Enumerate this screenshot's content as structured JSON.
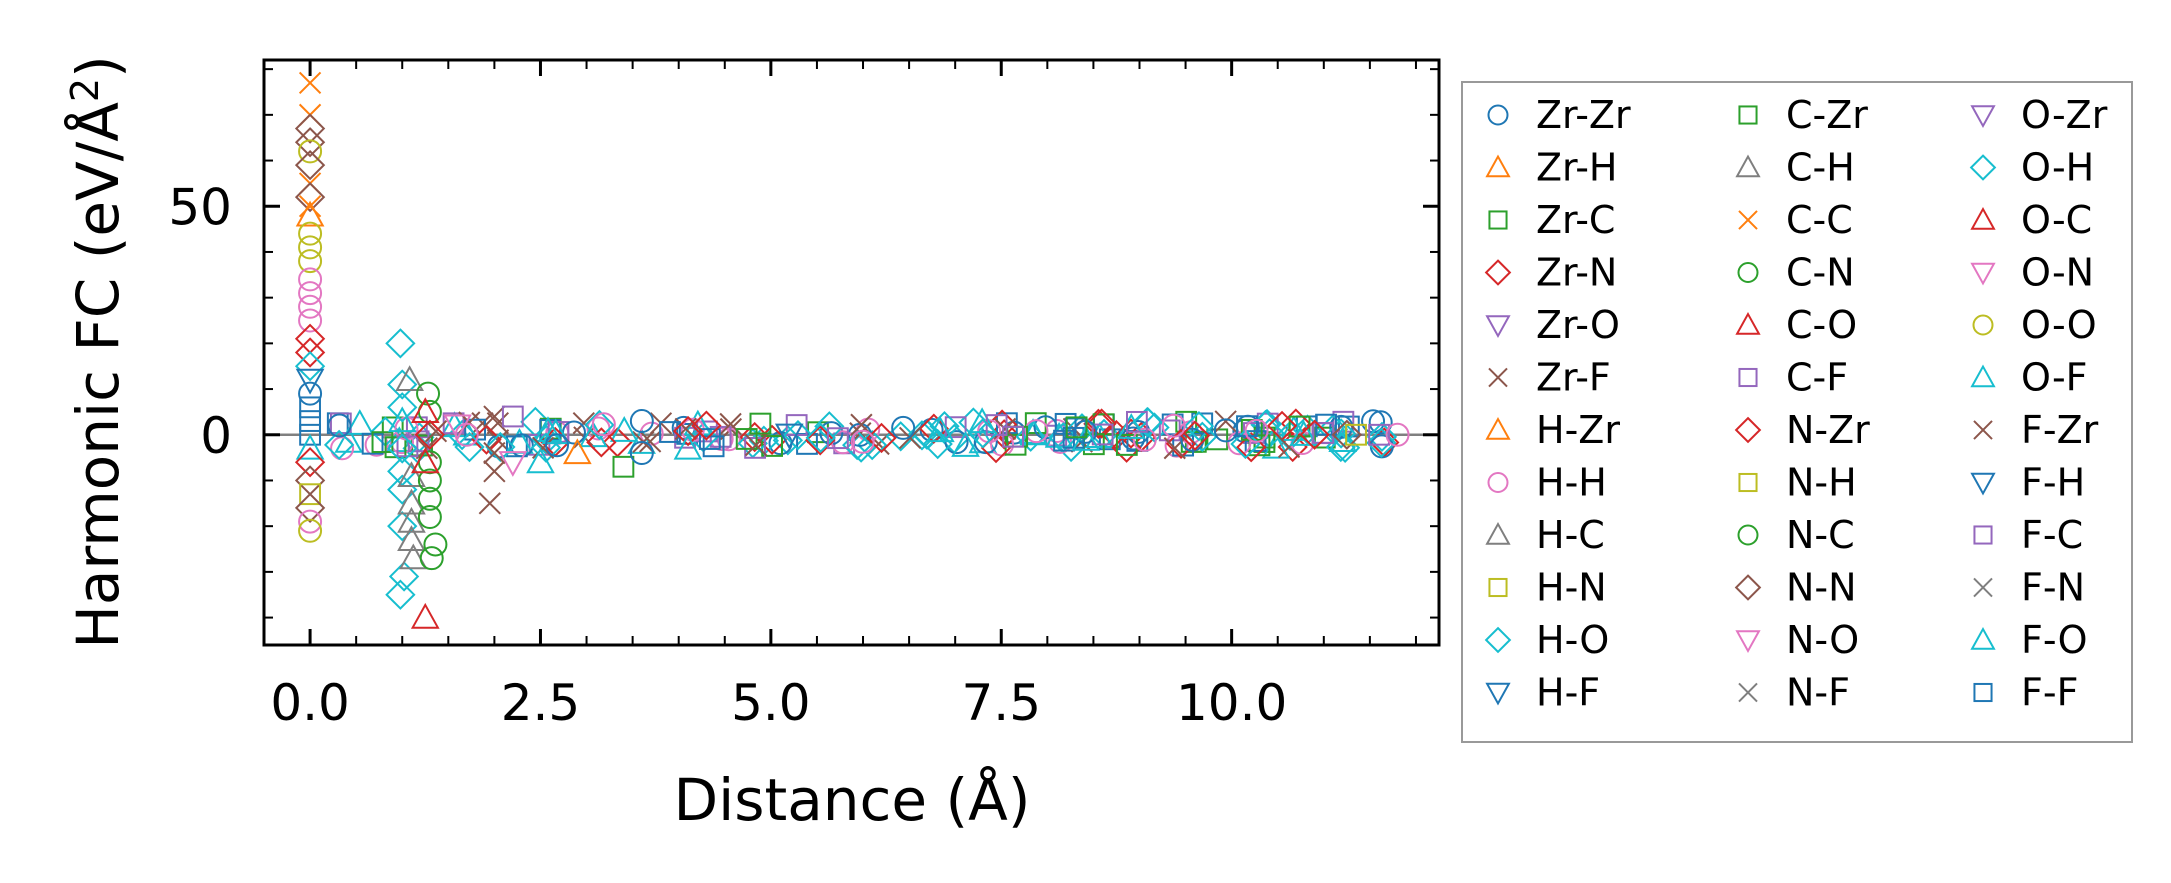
{
  "chart_data": {
    "type": "scatter",
    "title": "",
    "xlabel": "Distance (Å)",
    "ylabel": "Harmonic FC (eV/Å²)",
    "ylabel_parts": {
      "prefix": "Harmonic FC (eV/Å",
      "superscript": "2",
      "suffix": ")"
    },
    "xlim": [
      -0.5,
      12.25
    ],
    "ylim": [
      -46,
      82
    ],
    "xticks": [
      0.0,
      2.5,
      5.0,
      7.5,
      10.0
    ],
    "xtick_labels": [
      "0.0",
      "2.5",
      "5.0",
      "7.5",
      "10.0"
    ],
    "yticks": [
      0,
      50
    ],
    "ytick_labels": [
      "0",
      "50"
    ],
    "reference_line_y": 0,
    "legend_position": "right-outside",
    "legend": [
      {
        "label": "Zr-Zr",
        "marker": "circle",
        "color": "#1f77b4"
      },
      {
        "label": "Zr-H",
        "marker": "triangle-up",
        "color": "#ff7f0e"
      },
      {
        "label": "Zr-C",
        "marker": "square",
        "color": "#2ca02c"
      },
      {
        "label": "Zr-N",
        "marker": "diamond",
        "color": "#d62728"
      },
      {
        "label": "Zr-O",
        "marker": "triangle-down",
        "color": "#9467bd"
      },
      {
        "label": "Zr-F",
        "marker": "x",
        "color": "#8c564b"
      },
      {
        "label": "H-Zr",
        "marker": "triangle-up",
        "color": "#ff7f0e"
      },
      {
        "label": "H-H",
        "marker": "circle",
        "color": "#e377c2"
      },
      {
        "label": "H-C",
        "marker": "triangle-up",
        "color": "#7f7f7f"
      },
      {
        "label": "H-N",
        "marker": "square",
        "color": "#bcbd22"
      },
      {
        "label": "H-O",
        "marker": "diamond",
        "color": "#17becf"
      },
      {
        "label": "H-F",
        "marker": "triangle-down",
        "color": "#1f77b4"
      },
      {
        "label": "C-Zr",
        "marker": "square",
        "color": "#2ca02c"
      },
      {
        "label": "C-H",
        "marker": "triangle-up",
        "color": "#7f7f7f"
      },
      {
        "label": "C-C",
        "marker": "x",
        "color": "#ff7f0e"
      },
      {
        "label": "C-N",
        "marker": "circle",
        "color": "#2ca02c"
      },
      {
        "label": "C-O",
        "marker": "triangle-up",
        "color": "#d62728"
      },
      {
        "label": "C-F",
        "marker": "square",
        "color": "#9467bd"
      },
      {
        "label": "N-Zr",
        "marker": "diamond",
        "color": "#d62728"
      },
      {
        "label": "N-H",
        "marker": "square",
        "color": "#bcbd22"
      },
      {
        "label": "N-C",
        "marker": "circle",
        "color": "#2ca02c"
      },
      {
        "label": "N-N",
        "marker": "diamond",
        "color": "#8c564b"
      },
      {
        "label": "N-O",
        "marker": "triangle-down",
        "color": "#e377c2"
      },
      {
        "label": "N-F",
        "marker": "x",
        "color": "#7f7f7f"
      },
      {
        "label": "O-Zr",
        "marker": "triangle-down",
        "color": "#9467bd"
      },
      {
        "label": "O-H",
        "marker": "diamond",
        "color": "#17becf"
      },
      {
        "label": "O-C",
        "marker": "triangle-up",
        "color": "#d62728"
      },
      {
        "label": "O-N",
        "marker": "triangle-down",
        "color": "#e377c2"
      },
      {
        "label": "O-O",
        "marker": "circle",
        "color": "#bcbd22"
      },
      {
        "label": "O-F",
        "marker": "triangle-up",
        "color": "#17becf"
      },
      {
        "label": "F-Zr",
        "marker": "x",
        "color": "#8c564b"
      },
      {
        "label": "F-H",
        "marker": "triangle-down",
        "color": "#1f77b4"
      },
      {
        "label": "F-C",
        "marker": "square",
        "color": "#9467bd"
      },
      {
        "label": "F-N",
        "marker": "x",
        "color": "#7f7f7f"
      },
      {
        "label": "F-O",
        "marker": "triangle-up",
        "color": "#17becf"
      },
      {
        "label": "F-F",
        "marker": "square",
        "color": "#1f77b4"
      }
    ],
    "points": [
      {
        "pair": "C-C",
        "x": 0.0,
        "y": 77
      },
      {
        "pair": "C-C",
        "x": 0.0,
        "y": 70
      },
      {
        "pair": "N-N",
        "x": 0.0,
        "y": 67
      },
      {
        "pair": "N-N",
        "x": 0.0,
        "y": 64
      },
      {
        "pair": "O-O",
        "x": 0.0,
        "y": 62
      },
      {
        "pair": "N-N",
        "x": 0.0,
        "y": 59
      },
      {
        "pair": "C-C",
        "x": 0.0,
        "y": 55
      },
      {
        "pair": "N-N",
        "x": 0.0,
        "y": 52
      },
      {
        "pair": "C-C",
        "x": 0.0,
        "y": 50
      },
      {
        "pair": "Zr-H",
        "x": 0.0,
        "y": 48
      },
      {
        "pair": "O-O",
        "x": 0.0,
        "y": 44
      },
      {
        "pair": "O-O",
        "x": 0.0,
        "y": 41
      },
      {
        "pair": "O-O",
        "x": 0.0,
        "y": 38
      },
      {
        "pair": "H-H",
        "x": 0.0,
        "y": 34
      },
      {
        "pair": "H-H",
        "x": 0.0,
        "y": 31
      },
      {
        "pair": "H-H",
        "x": 0.0,
        "y": 28
      },
      {
        "pair": "H-H",
        "x": 0.0,
        "y": 25
      },
      {
        "pair": "Zr-N",
        "x": 0.0,
        "y": 21
      },
      {
        "pair": "Zr-N",
        "x": 0.0,
        "y": 18
      },
      {
        "pair": "O-H",
        "x": 0.0,
        "y": 15
      },
      {
        "pair": "F-H",
        "x": 0.0,
        "y": 12
      },
      {
        "pair": "Zr-Zr",
        "x": 0.0,
        "y": 9
      },
      {
        "pair": "F-F",
        "x": 0.0,
        "y": 6
      },
      {
        "pair": "F-F",
        "x": 0.0,
        "y": 3
      },
      {
        "pair": "F-F",
        "x": 0.0,
        "y": 0
      },
      {
        "pair": "O-F",
        "x": 0.0,
        "y": -3
      },
      {
        "pair": "Zr-N",
        "x": 0.0,
        "y": -6
      },
      {
        "pair": "N-N",
        "x": 0.0,
        "y": -10
      },
      {
        "pair": "H-N",
        "x": 0.0,
        "y": -13
      },
      {
        "pair": "N-N",
        "x": 0.0,
        "y": -16
      },
      {
        "pair": "H-H",
        "x": 0.0,
        "y": -19
      },
      {
        "pair": "O-O",
        "x": 0.0,
        "y": -21
      },
      {
        "pair": "H-O",
        "x": 0.98,
        "y": 20
      },
      {
        "pair": "H-O",
        "x": 1.0,
        "y": 11
      },
      {
        "pair": "O-H",
        "x": 1.0,
        "y": 6
      },
      {
        "pair": "O-F",
        "x": 1.0,
        "y": 3
      },
      {
        "pair": "O-H",
        "x": 1.0,
        "y": -3
      },
      {
        "pair": "H-O",
        "x": 1.0,
        "y": -8
      },
      {
        "pair": "H-O",
        "x": 1.0,
        "y": -12
      },
      {
        "pair": "O-H",
        "x": 1.0,
        "y": -20
      },
      {
        "pair": "H-O",
        "x": 1.02,
        "y": -31
      },
      {
        "pair": "H-O",
        "x": 0.98,
        "y": -35
      },
      {
        "pair": "C-H",
        "x": 1.08,
        "y": 12
      },
      {
        "pair": "H-C",
        "x": 1.1,
        "y": -9
      },
      {
        "pair": "C-H",
        "x": 1.1,
        "y": -15
      },
      {
        "pair": "H-C",
        "x": 1.1,
        "y": -19
      },
      {
        "pair": "C-H",
        "x": 1.1,
        "y": -23
      },
      {
        "pair": "H-C",
        "x": 1.12,
        "y": -27
      },
      {
        "pair": "C-N",
        "x": 1.28,
        "y": 9
      },
      {
        "pair": "N-C",
        "x": 1.3,
        "y": 5
      },
      {
        "pair": "C-N",
        "x": 1.3,
        "y": -6
      },
      {
        "pair": "N-C",
        "x": 1.3,
        "y": -10
      },
      {
        "pair": "C-N",
        "x": 1.3,
        "y": -14
      },
      {
        "pair": "N-C",
        "x": 1.3,
        "y": -18
      },
      {
        "pair": "C-N",
        "x": 1.32,
        "y": -27
      },
      {
        "pair": "C-N",
        "x": 1.36,
        "y": -24
      },
      {
        "pair": "O-C",
        "x": 1.25,
        "y": -40
      },
      {
        "pair": "C-O",
        "x": 1.25,
        "y": 5
      },
      {
        "pair": "C-O",
        "x": 1.25,
        "y": -6
      },
      {
        "pair": "Zr-N",
        "x": 1.3,
        "y": 0
      },
      {
        "pair": "N-O",
        "x": 1.6,
        "y": 2
      },
      {
        "pair": "H-H",
        "x": 1.7,
        "y": 0
      },
      {
        "pair": "Zr-F",
        "x": 2.0,
        "y": 4
      },
      {
        "pair": "F-Zr",
        "x": 2.0,
        "y": -4
      },
      {
        "pair": "Zr-F",
        "x": 2.0,
        "y": -8
      },
      {
        "pair": "F-Zr",
        "x": 1.95,
        "y": -15
      },
      {
        "pair": "C-F",
        "x": 2.2,
        "y": 4
      },
      {
        "pair": "N-O",
        "x": 2.2,
        "y": -6
      },
      {
        "pair": "O-F",
        "x": 2.5,
        "y": -6
      },
      {
        "pair": "Zr-H",
        "x": 2.9,
        "y": -4
      },
      {
        "pair": "Zr-C",
        "x": 3.4,
        "y": -7
      },
      {
        "pair": "Zr-Zr",
        "x": 3.6,
        "y": 3
      },
      {
        "pair": "Zr-Zr",
        "x": 3.6,
        "y": -4
      },
      {
        "pair": "O-F",
        "x": 4.1,
        "y": -3
      },
      {
        "pair": "N-Zr",
        "x": 4.3,
        "y": 2
      },
      {
        "pair": "H-F",
        "x": 5.2,
        "y": 0
      },
      {
        "pair": "Zr-N",
        "x": 10.9,
        "y": 0
      },
      {
        "pair": "N-N",
        "x": 11.25,
        "y": 0
      },
      {
        "pair": "H-N",
        "x": 11.35,
        "y": 0
      },
      {
        "pair": "C-F",
        "x": 11.6,
        "y": 0
      },
      {
        "pair": "H-H",
        "x": 11.8,
        "y": 0
      }
    ],
    "dense_band": {
      "x_range": [
        0.3,
        11.7
      ],
      "y_range": [
        -3,
        3
      ],
      "pairs": [
        "F-F",
        "O-F",
        "H-O",
        "Zr-Zr",
        "N-Zr",
        "H-H",
        "Zr-C",
        "F-Zr",
        "O-H",
        "C-F"
      ]
    }
  }
}
